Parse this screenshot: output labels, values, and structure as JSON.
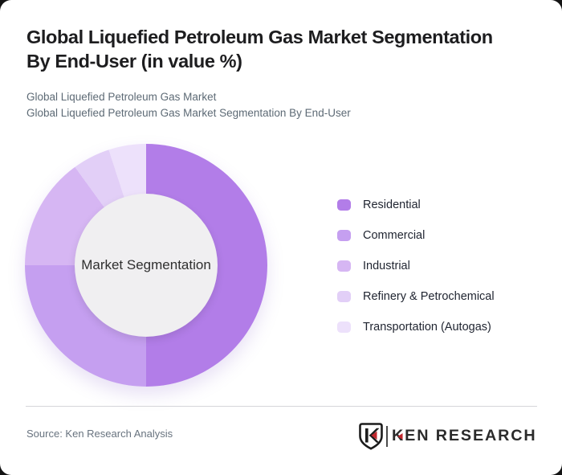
{
  "card": {
    "title_lines": [
      "Global Liquefied Petroleum Gas Market Segmentation",
      "By End-User (in value %)"
    ],
    "subtitle_line1": "Global Liquefied Petroleum Gas Market",
    "subtitle_line2": "Global Liquefied Petroleum Gas Market Segmentation By End-User"
  },
  "chart_data": {
    "type": "pie",
    "variant": "donut",
    "title": "Global Liquefied Petroleum Gas Market Segmentation By End-User (in value %)",
    "center_label": "Market Segmentation",
    "categories": [
      "Residential",
      "Commercial",
      "Industrial",
      "Refinery & Petrochemical",
      "Transportation (Autogas)"
    ],
    "values": [
      50,
      25,
      15,
      5,
      5
    ],
    "colors": [
      "#b27de8",
      "#c59ff0",
      "#d6b6f3",
      "#e2cff7",
      "#ede1fb"
    ],
    "hole_color": "#f0eff1",
    "start_angle_deg": 0,
    "direction": "clockwise",
    "legend_position": "right"
  },
  "footer": {
    "source": "Source: Ken Research Analysis",
    "logo": {
      "text": "KEN RESEARCH",
      "mark_letter": "K",
      "accent_color": "#c1272d",
      "ink_color": "#1c1c1c"
    }
  }
}
